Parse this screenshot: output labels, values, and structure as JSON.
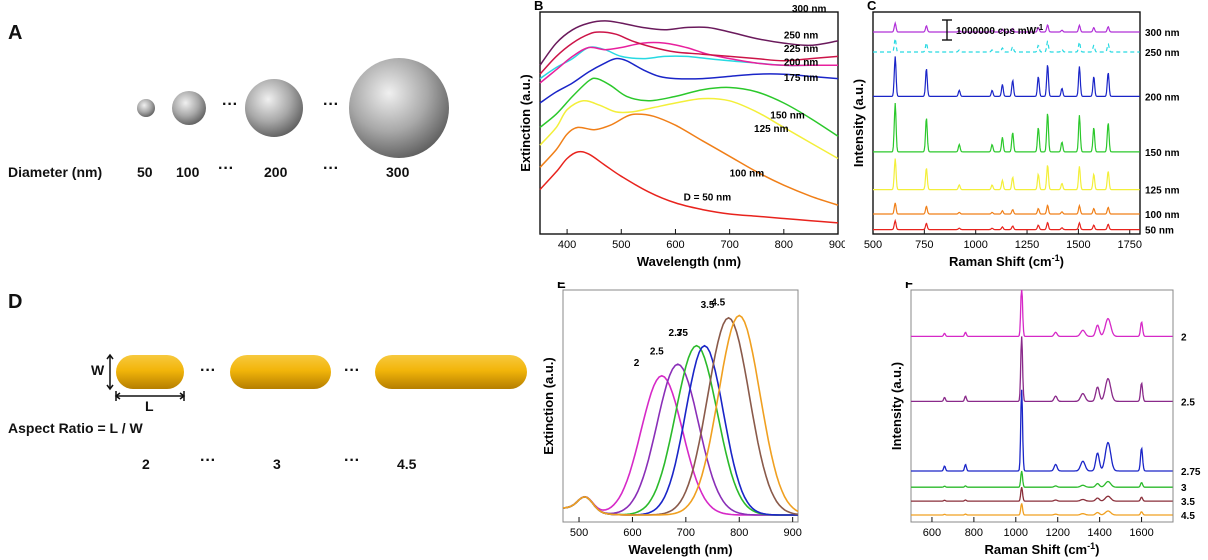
{
  "panels": {
    "A": {
      "letter": "A",
      "row_label": "Diameter (nm)",
      "sizes": [
        "50",
        "100",
        "200",
        "300"
      ],
      "ellipsis": "···"
    },
    "D": {
      "letter": "D",
      "w_label": "W",
      "l_label": "L",
      "formula": "Aspect Ratio = L / W",
      "ratios": [
        "2",
        "3",
        "4.5"
      ],
      "ellipsis": "···"
    }
  },
  "chart_data": [
    {
      "id": "B",
      "letter": "B",
      "type": "line",
      "xlabel": "Wavelength (nm)",
      "ylabel": "Extinction (a.u.)",
      "xlim": [
        350,
        900
      ],
      "xticks": [
        400,
        500,
        600,
        700,
        800,
        900
      ],
      "series": [
        {
          "name": "D = 50 nm",
          "color": "#e8231d",
          "x": [
            350,
            380,
            400,
            420,
            440,
            470,
            500,
            550,
            600,
            650,
            700,
            750,
            800,
            850,
            900
          ],
          "y": [
            0.2,
            0.28,
            0.34,
            0.37,
            0.36,
            0.31,
            0.26,
            0.19,
            0.14,
            0.11,
            0.09,
            0.08,
            0.07,
            0.06,
            0.05
          ]
        },
        {
          "name": "100 nm",
          "color": "#f07f18",
          "x": [
            350,
            380,
            400,
            420,
            450,
            480,
            510,
            530,
            560,
            600,
            650,
            700,
            750,
            800,
            850,
            900
          ],
          "y": [
            0.3,
            0.38,
            0.45,
            0.48,
            0.47,
            0.49,
            0.53,
            0.54,
            0.53,
            0.49,
            0.42,
            0.35,
            0.28,
            0.22,
            0.17,
            0.13
          ]
        },
        {
          "name": "125 nm",
          "color": "#f3ef3a",
          "x": [
            350,
            380,
            400,
            430,
            460,
            490,
            520,
            560,
            600,
            650,
            700,
            750,
            800,
            850,
            900
          ],
          "y": [
            0.4,
            0.48,
            0.56,
            0.6,
            0.58,
            0.55,
            0.55,
            0.57,
            0.59,
            0.61,
            0.6,
            0.55,
            0.48,
            0.41,
            0.34
          ]
        },
        {
          "name": "150 nm",
          "color": "#2bc82b",
          "x": [
            350,
            380,
            410,
            440,
            455,
            480,
            510,
            550,
            600,
            650,
            700,
            750,
            800,
            850,
            900
          ],
          "y": [
            0.48,
            0.54,
            0.62,
            0.69,
            0.7,
            0.67,
            0.62,
            0.6,
            0.62,
            0.65,
            0.66,
            0.64,
            0.59,
            0.52,
            0.44
          ]
        },
        {
          "name": "175 nm",
          "color": "#1a25c8",
          "x": [
            350,
            380,
            410,
            440,
            470,
            490,
            510,
            540,
            570,
            600,
            650,
            700,
            750,
            800,
            850,
            900
          ],
          "y": [
            0.59,
            0.64,
            0.68,
            0.73,
            0.77,
            0.79,
            0.78,
            0.74,
            0.71,
            0.7,
            0.7,
            0.71,
            0.72,
            0.72,
            0.71,
            0.7
          ]
        },
        {
          "name": "200 nm",
          "color": "#27d9e2",
          "x": [
            350,
            380,
            410,
            440,
            470,
            500,
            540,
            580,
            620,
            660,
            700,
            750,
            800,
            850,
            900
          ],
          "y": [
            0.7,
            0.75,
            0.79,
            0.84,
            0.83,
            0.8,
            0.79,
            0.8,
            0.8,
            0.79,
            0.78,
            0.77,
            0.76,
            0.76,
            0.76
          ]
        },
        {
          "name": "225 nm",
          "color": "#e8209d",
          "x": [
            350,
            380,
            410,
            440,
            470,
            500,
            540,
            580,
            620,
            660,
            700,
            750,
            800,
            850,
            900
          ],
          "y": [
            0.68,
            0.74,
            0.8,
            0.84,
            0.83,
            0.84,
            0.86,
            0.86,
            0.84,
            0.81,
            0.79,
            0.77,
            0.76,
            0.76,
            0.76
          ]
        },
        {
          "name": "250 nm",
          "color": "#cc1448",
          "x": [
            350,
            380,
            410,
            440,
            460,
            490,
            520,
            560,
            600,
            650,
            700,
            750,
            800,
            850,
            900
          ],
          "y": [
            0.72,
            0.8,
            0.86,
            0.9,
            0.91,
            0.9,
            0.87,
            0.84,
            0.82,
            0.81,
            0.8,
            0.79,
            0.78,
            0.79,
            0.8
          ]
        },
        {
          "name": "300 nm",
          "color": "#6a1a5c",
          "x": [
            350,
            380,
            410,
            440,
            470,
            500,
            540,
            580,
            620,
            660,
            700,
            750,
            800,
            850,
            900
          ],
          "y": [
            0.76,
            0.86,
            0.92,
            0.95,
            0.96,
            0.95,
            0.93,
            0.92,
            0.93,
            0.93,
            0.91,
            0.88,
            0.86,
            0.85,
            0.87
          ]
        }
      ]
    },
    {
      "id": "C",
      "letter": "C",
      "type": "line",
      "xlabel": "Raman Shift (cm",
      "xlabel_sup": "-1",
      "xlabel_end": ")",
      "ylabel": "Intensity (a.u.)",
      "xlim": [
        500,
        1800
      ],
      "xticks": [
        500,
        750,
        1000,
        1250,
        1500,
        1750
      ],
      "scale_bar_text": "1000000 cps mW",
      "scale_bar_sup": "-1",
      "peaks": [
        {
          "pos": 608,
          "rel": 1.0
        },
        {
          "pos": 760,
          "rel": 0.7
        },
        {
          "pos": 920,
          "rel": 0.15
        },
        {
          "pos": 1080,
          "rel": 0.15
        },
        {
          "pos": 1130,
          "rel": 0.3
        },
        {
          "pos": 1180,
          "rel": 0.4
        },
        {
          "pos": 1305,
          "rel": 0.5
        },
        {
          "pos": 1350,
          "rel": 0.8
        },
        {
          "pos": 1420,
          "rel": 0.2
        },
        {
          "pos": 1505,
          "rel": 0.75
        },
        {
          "pos": 1575,
          "rel": 0.5
        },
        {
          "pos": 1645,
          "rel": 0.6
        }
      ],
      "series": [
        {
          "name": "50 nm",
          "color": "#e8231d",
          "baseline": 0.02,
          "amplitude": 0.04
        },
        {
          "name": "100 nm",
          "color": "#f07f18",
          "baseline": 0.09,
          "amplitude": 0.05
        },
        {
          "name": "125 nm",
          "color": "#f3ef3a",
          "baseline": 0.2,
          "amplitude": 0.14
        },
        {
          "name": "150 nm",
          "color": "#2bc82b",
          "baseline": 0.37,
          "amplitude": 0.22
        },
        {
          "name": "200 nm",
          "color": "#1a25c8",
          "baseline": 0.62,
          "amplitude": 0.18
        },
        {
          "name": "250 nm",
          "color": "#27d9e2",
          "baseline": 0.82,
          "amplitude": 0.06,
          "dashed": true
        },
        {
          "name": "300 nm",
          "color": "#b030d8",
          "baseline": 0.91,
          "amplitude": 0.04
        }
      ]
    },
    {
      "id": "E",
      "letter": "E",
      "type": "line",
      "xlabel": "Wavelength (nm)",
      "ylabel": "Extinction (a.u.)",
      "xlim": [
        470,
        910
      ],
      "xticks": [
        500,
        600,
        700,
        800,
        900
      ],
      "series": [
        {
          "name": "2",
          "color": "#d629c7",
          "peak": 655,
          "height": 0.6,
          "width": 55
        },
        {
          "name": "2.5",
          "color": "#8a2fb8",
          "peak": 685,
          "height": 0.65,
          "width": 55
        },
        {
          "name": "2.75",
          "color": "#2bba2b",
          "peak": 720,
          "height": 0.73,
          "width": 55
        },
        {
          "name": "3",
          "color": "#1a25c8",
          "peak": 735,
          "height": 0.73,
          "width": 50
        },
        {
          "name": "3.5",
          "color": "#8a5a4a",
          "peak": 780,
          "height": 0.85,
          "width": 55
        },
        {
          "name": "4.5",
          "color": "#f0a020",
          "peak": 800,
          "height": 0.86,
          "width": 55
        }
      ]
    },
    {
      "id": "F",
      "letter": "F",
      "type": "line",
      "xlabel": "Raman Shift (cm",
      "xlabel_sup": "-1",
      "xlabel_end": ")",
      "ylabel": "Intensity (a.u.)",
      "xlim": [
        500,
        1750
      ],
      "xticks": [
        600,
        800,
        1000,
        1200,
        1400,
        1600
      ],
      "series": [
        {
          "name": "4.5",
          "color": "#f0a020",
          "baseline": 0.03
        },
        {
          "name": "3.5",
          "color": "#8a2f3a",
          "baseline": 0.09
        },
        {
          "name": "3",
          "color": "#2bba2b",
          "baseline": 0.15
        },
        {
          "name": "2.75",
          "color": "#1a25c8",
          "baseline": 0.22
        },
        {
          "name": "2.5",
          "color": "#8a2a8a",
          "baseline": 0.52
        },
        {
          "name": "2",
          "color": "#d629c7",
          "baseline": 0.8
        }
      ]
    }
  ]
}
